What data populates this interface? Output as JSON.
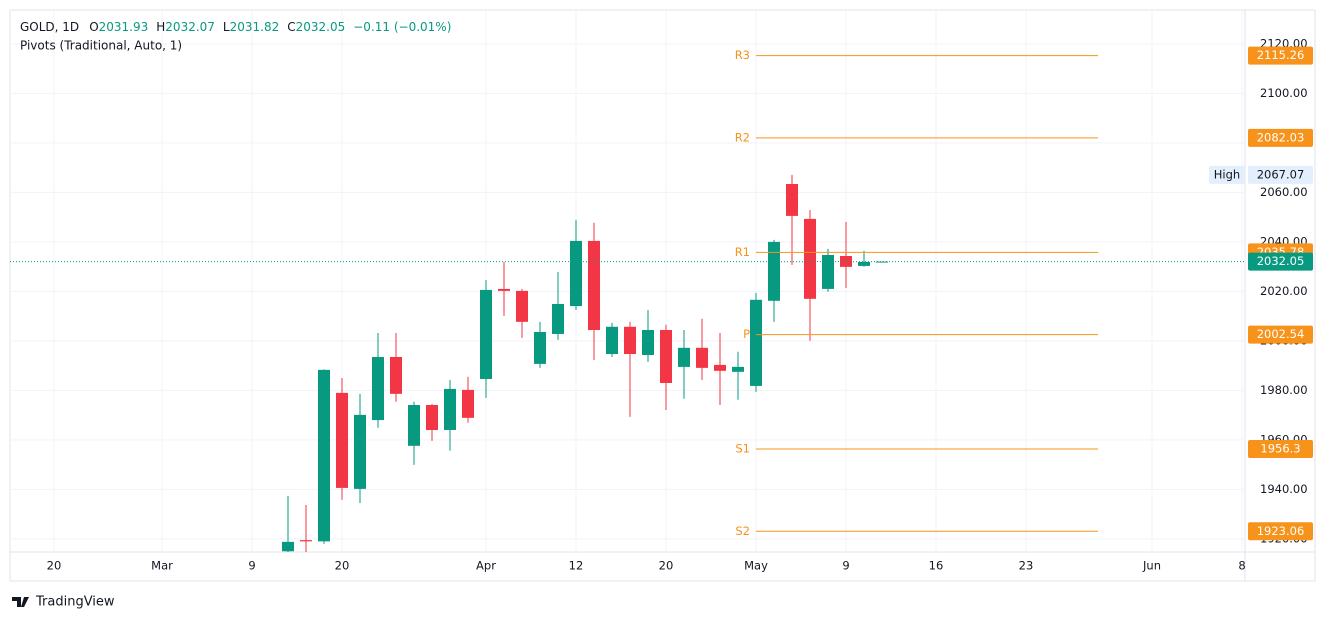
{
  "chart_data": {
    "type": "candlestick",
    "header": {
      "symbol": "GOLD, 1D",
      "keys": [
        "O",
        "H",
        "L",
        "C"
      ],
      "change": "−0.11 (−0.01%)"
    },
    "indicator": "Pivots (Traditional, Auto, 1)",
    "categories": [
      "20",
      null,
      null,
      null,
      null,
      null,
      "Mar",
      null,
      null,
      null,
      null,
      "9",
      null,
      null,
      null,
      null,
      "20",
      null,
      null,
      null,
      null,
      null,
      null,
      null,
      "Apr",
      null,
      null,
      null,
      null,
      "12",
      null,
      null,
      null,
      null,
      "20",
      null,
      null,
      null,
      null,
      "May",
      null,
      null,
      null,
      null,
      "9",
      null,
      null,
      null,
      null,
      "16",
      null,
      null,
      null,
      null,
      "23",
      null,
      null,
      null,
      null,
      null,
      null,
      "Jun",
      null,
      null,
      null,
      null,
      "8"
    ],
    "open": [
      null,
      null,
      null,
      null,
      null,
      null,
      null,
      null,
      null,
      null,
      null,
      null,
      null,
      1915,
      1919.5,
      1919,
      1979,
      1940.2,
      1968,
      1993.5,
      1957.6,
      1974.1,
      1964,
      1980.2,
      1984.6,
      2021,
      2020.2,
      1990.7,
      2002.8,
      2014.1,
      2040.4,
      1994.7,
      2005.7,
      1994.3,
      2004.4,
      1989.5,
      1997.2,
      1990.3,
      1987.5,
      1981.8,
      2016.2,
      2063.4,
      2049.3,
      2021,
      2034.3,
      2030.3,
      2031.93,
      null,
      null,
      null,
      null,
      null,
      null,
      null,
      null,
      null,
      null,
      null,
      null,
      null,
      null,
      null,
      null,
      null,
      null,
      null,
      null
    ],
    "high": [
      null,
      null,
      null,
      null,
      null,
      null,
      null,
      null,
      null,
      null,
      null,
      null,
      null,
      1937.4,
      1933.7,
      1988.5,
      1985,
      1978.6,
      2003.2,
      2003.2,
      1975.4,
      1974.5,
      1984.2,
      1985.5,
      2024.6,
      2031.9,
      2021,
      2007.7,
      2027.9,
      2048.9,
      2047.7,
      2007.3,
      2007.7,
      2012.5,
      2006.5,
      2004.4,
      2008.9,
      2003.2,
      1995.6,
      2019.4,
      2040.8,
      2067.07,
      2052.9,
      2037.2,
      2048.1,
      2036.4,
      2032.07,
      null,
      null,
      null,
      null,
      null,
      null,
      null,
      null,
      null,
      null,
      null,
      null,
      null,
      null,
      null,
      null,
      null,
      null,
      null,
      null
    ],
    "low": [
      null,
      null,
      null,
      null,
      null,
      null,
      null,
      null,
      null,
      null,
      null,
      null,
      null,
      1912,
      1914,
      1918,
      1935.8,
      1934.5,
      1964.9,
      1975.4,
      1949.9,
      1959.6,
      1955.6,
      1966.9,
      1977,
      2010.1,
      2001.2,
      1989.1,
      2000.4,
      2012.5,
      1992.3,
      1993.5,
      1969.3,
      1991.5,
      1972.1,
      1976.6,
      1984.2,
      1974.1,
      1976.2,
      1979.4,
      2007.7,
      2030.7,
      2000,
      2019.8,
      2021.4,
      2029.9,
      2031.82,
      null,
      null,
      null,
      null,
      null,
      null,
      null,
      null,
      null,
      null,
      null,
      null,
      null,
      null,
      null,
      null,
      null,
      null,
      null,
      null
    ],
    "close": [
      null,
      null,
      null,
      null,
      null,
      null,
      null,
      null,
      null,
      null,
      null,
      null,
      null,
      1918.8,
      1919,
      1988.3,
      1940.6,
      1970.1,
      1993.5,
      1978.6,
      1974.1,
      1964,
      1980.6,
      1968.9,
      2020.6,
      2020.2,
      2007.7,
      2003.6,
      2014.9,
      2040.4,
      2004.4,
      2005.7,
      1994.7,
      2004.4,
      1983,
      1997.2,
      1989.1,
      1987.9,
      1989.5,
      2016.6,
      2040,
      2050.5,
      2017,
      2034.7,
      2029.9,
      2031.9,
      2032.05,
      null,
      null,
      null,
      null,
      null,
      null,
      null,
      null,
      null,
      null,
      null,
      null,
      null,
      null,
      null,
      null,
      null,
      null,
      null,
      null
    ],
    "up_color": "#089981",
    "down_color": "#f23645",
    "pivots": [
      {
        "name": "R3",
        "value": 2115.26
      },
      {
        "name": "R2",
        "value": 2082.03
      },
      {
        "name": "R1",
        "value": 2035.78
      },
      {
        "name": "P",
        "value": 2002.54
      },
      {
        "name": "S1",
        "value": 1956.3
      },
      {
        "name": "S2",
        "value": 1923.06
      }
    ],
    "pivot_color": "#f7931a",
    "high_label": "High",
    "ylim": [
      1914.7,
      2133.7
    ],
    "yticks": [
      {
        "value": 1920,
        "label": "1920.00"
      },
      {
        "value": 1940,
        "label": "1940.00"
      },
      {
        "value": 1960,
        "label": "1960.00"
      },
      {
        "value": 1980,
        "label": "1980.00"
      },
      {
        "value": 2000,
        "label": "2000.00"
      },
      {
        "value": 2020,
        "label": "2020.00"
      },
      {
        "value": 2040,
        "label": "2040.00"
      },
      {
        "value": 2060,
        "label": "2060.00"
      },
      {
        "value": 2080,
        "label": "2080.00"
      },
      {
        "value": 2100,
        "label": "2100.00"
      },
      {
        "value": 2120,
        "label": "2120.00"
      }
    ],
    "grid": true,
    "branding": "TradingView"
  }
}
